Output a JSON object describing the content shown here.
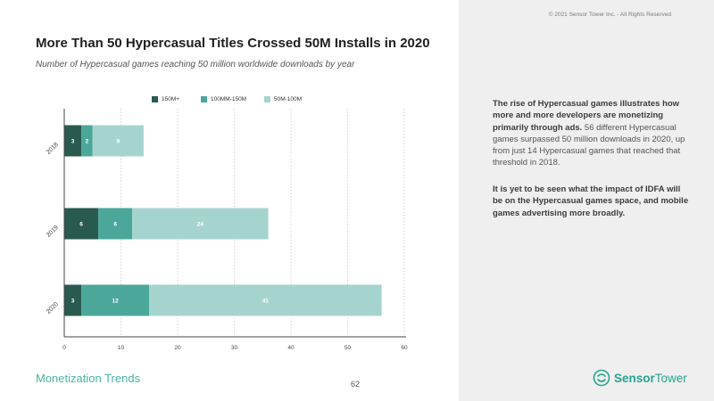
{
  "copyright": "© 2021 Sensor Tower Inc. - All Rights Reserved",
  "title": "More Than 50 Hypercasual Titles Crossed 50M Installs in 2020",
  "subtitle": "Number of Hypercasual games reaching 50 million worldwide downloads by year",
  "commentary": {
    "paragraph1_bold": "The rise of Hypercasual games illustrates how more and more developers are monetizing primarily through ads.",
    "paragraph1_rest": " 56 different Hypercasual games surpassed 50 million downloads in 2020, up from just 14 Hypercasual games that reached that threshold in 2018.",
    "paragraph2_bold": "It is yet to be seen what the impact of IDFA will be on the Hypercasual games space, and mobile games advertising more broadly."
  },
  "footer": {
    "section_label": "Monetization Trends",
    "page_number": "62",
    "logo_text_bold": "Sensor",
    "logo_text_rest": "Tower"
  },
  "colors": {
    "series_1": "#285a50",
    "series_2": "#4aa79a",
    "series_3": "#a5d4ce",
    "panel_bg": "#efefef",
    "accent": "#4cb3a3"
  },
  "icons": {
    "logo": "sensor-tower-logo-icon"
  },
  "chart_data": {
    "type": "bar",
    "orientation": "horizontal",
    "stacked": true,
    "title": "More Than 50 Hypercasual Titles Crossed 50M Installs in 2020",
    "subtitle": "Number of Hypercasual games reaching 50 million worldwide downloads by year",
    "categories": [
      "2018",
      "2019",
      "2020"
    ],
    "series": [
      {
        "name": "150M+",
        "values": [
          3,
          6,
          3
        ],
        "color": "#285a50"
      },
      {
        "name": "100MM-150M",
        "values": [
          2,
          6,
          12
        ],
        "color": "#4aa79a"
      },
      {
        "name": "50M-100M",
        "values": [
          9,
          24,
          41
        ],
        "color": "#a5d4ce"
      }
    ],
    "xlim": [
      0,
      60
    ],
    "xticks": [
      0,
      10,
      20,
      30,
      40,
      50,
      60
    ],
    "grid": true,
    "legend_position": "top"
  }
}
